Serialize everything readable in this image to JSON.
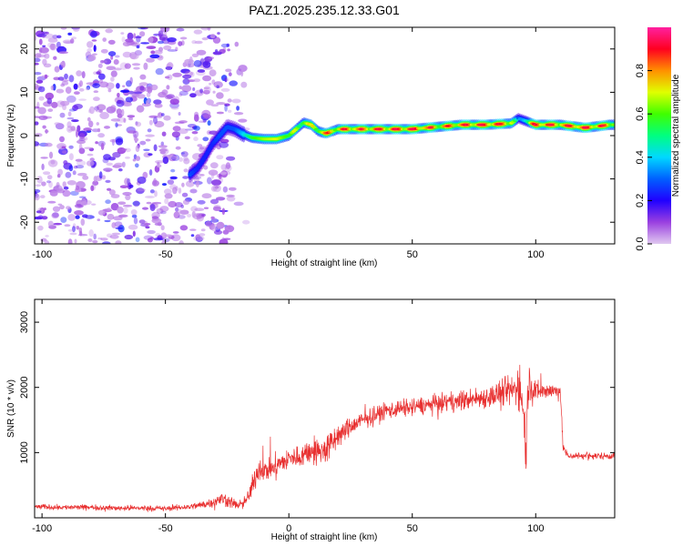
{
  "figure": {
    "title": "PAZ1.2025.235.12.33.G01"
  },
  "chart_data": [
    {
      "type": "heatmap",
      "xlabel": "Height of straight line (km)",
      "ylabel": "Frequency (Hz)",
      "xlim": [
        -103,
        132
      ],
      "ylim": [
        -25,
        25
      ],
      "xticks": [
        -100,
        -50,
        0,
        50,
        100
      ],
      "yticks": [
        -20,
        -10,
        0,
        10,
        20
      ],
      "colorbar": {
        "label": "Normalized spectral amplitude",
        "range": [
          0.0,
          1.0
        ],
        "ticks": [
          "0.0",
          "0.2",
          "0.4",
          "0.6",
          "0.8"
        ],
        "colors": [
          "#e0c8f0",
          "#7000d0",
          "#0000ff",
          "#00c8ff",
          "#00ff40",
          "#c8ff00",
          "#ffa000",
          "#ff0000",
          "#ff2080"
        ]
      },
      "noise_region": {
        "x": [
          -103,
          -20
        ],
        "y": [
          -25,
          25
        ],
        "amplitude": 0.2
      },
      "ridge": {
        "x": [
          -40,
          -37,
          -34,
          -31,
          -28,
          -25,
          -22,
          -19,
          -15,
          -10,
          -5,
          0,
          3,
          6,
          9,
          12,
          15,
          20,
          30,
          40,
          50,
          60,
          70,
          80,
          90,
          93,
          100,
          110,
          120,
          130
        ],
        "freq": [
          -9.0,
          -7.5,
          -5.0,
          -2.0,
          0.0,
          2.0,
          1.5,
          0.5,
          -0.5,
          -0.8,
          -0.8,
          0.0,
          1.5,
          3.0,
          2.5,
          1.0,
          0.5,
          1.5,
          1.5,
          1.5,
          1.5,
          2.0,
          2.5,
          2.5,
          2.8,
          4.0,
          2.5,
          2.5,
          1.8,
          2.5
        ],
        "amplitude": [
          0.3,
          0.25,
          0.25,
          0.25,
          0.3,
          0.3,
          0.3,
          0.4,
          0.6,
          0.7,
          0.75,
          0.6,
          0.7,
          0.75,
          0.7,
          0.8,
          0.85,
          0.85,
          0.9,
          0.9,
          0.95,
          0.85,
          0.9,
          0.95,
          0.9,
          0.3,
          0.95,
          0.9,
          0.95,
          0.85
        ]
      }
    },
    {
      "type": "line",
      "xlabel": "Height of straight line (km)",
      "ylabel": "SNR (10 * v/v)",
      "xlim": [
        -103,
        132
      ],
      "ylim": [
        0,
        3350
      ],
      "xticks": [
        -100,
        -50,
        0,
        50,
        100
      ],
      "yticks": [
        1000,
        2000,
        3000
      ],
      "series": [
        {
          "name": "SNR",
          "color": "#e83030",
          "x": [
            -103,
            -90,
            -80,
            -70,
            -60,
            -50,
            -40,
            -35,
            -30,
            -27,
            -24,
            -20,
            -17,
            -15,
            -13,
            -12,
            -10,
            -5,
            0,
            5,
            10,
            12,
            15,
            20,
            25,
            30,
            40,
            50,
            60,
            70,
            80,
            85,
            90,
            93,
            95,
            96,
            97,
            100,
            105,
            110,
            111,
            113,
            120,
            132
          ],
          "y": [
            170,
            160,
            160,
            150,
            150,
            140,
            170,
            200,
            250,
            290,
            250,
            180,
            280,
            450,
            700,
            750,
            720,
            800,
            900,
            950,
            1050,
            1000,
            1050,
            1250,
            1400,
            1500,
            1650,
            1700,
            1750,
            1800,
            1850,
            1900,
            1950,
            2000,
            1800,
            1000,
            2100,
            1950,
            1950,
            1950,
            1100,
            950,
            950,
            950
          ],
          "noise_amplitude": [
            60,
            60,
            60,
            60,
            60,
            60,
            70,
            90,
            120,
            160,
            150,
            80,
            150,
            250,
            250,
            250,
            250,
            250,
            250,
            250,
            300,
            350,
            350,
            250,
            220,
            200,
            200,
            200,
            200,
            220,
            250,
            300,
            350,
            400,
            650,
            700,
            550,
            250,
            180,
            200,
            100,
            80,
            80,
            80
          ]
        }
      ]
    }
  ]
}
